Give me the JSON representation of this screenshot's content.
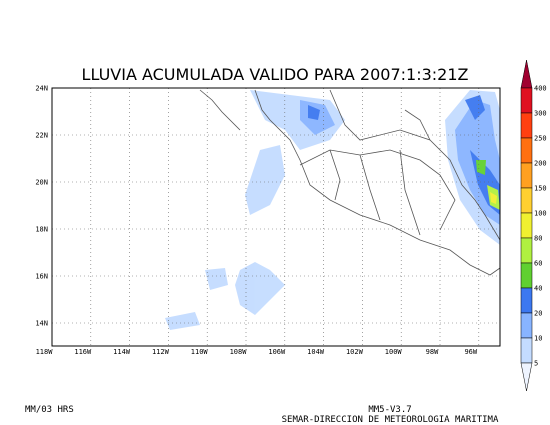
{
  "title": "LLUVIA ACUMULADA VALIDO PARA 2007:1:3:21Z",
  "lat_labels": [
    "24N",
    "22N",
    "20N",
    "18N",
    "16N",
    "14N"
  ],
  "lon_labels": [
    "118W",
    "116W",
    "114W",
    "112W",
    "110W",
    "108W",
    "106W",
    "104W",
    "102W",
    "100W",
    "98W",
    "96W"
  ],
  "legend": {
    "labels": [
      "400",
      "300",
      "250",
      "200",
      "150",
      "100",
      "80",
      "60",
      "40",
      "20",
      "10",
      "5"
    ],
    "colors": [
      "#a00030",
      "#e01020",
      "#ff4010",
      "#ff7010",
      "#ffa020",
      "#ffd030",
      "#f0f030",
      "#b0f040",
      "#60d030",
      "#3c78f0",
      "#88b4ff",
      "#c4dcff",
      "#eef4ff"
    ]
  },
  "footer": {
    "left": "MM/03 HRS",
    "version": "MM5-V3.7",
    "agency": "SEMAR-DIRECCION DE METEOROLOGIA MARITIMA"
  }
}
